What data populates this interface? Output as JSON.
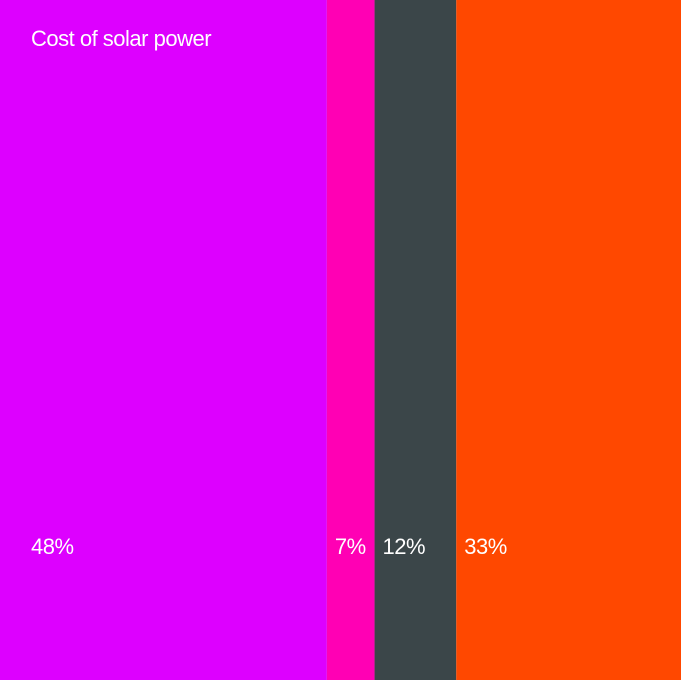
{
  "chart_data": {
    "type": "stacked-bar",
    "title": "Cost of solar power",
    "values": [
      48,
      7,
      12,
      33
    ],
    "value_labels": [
      "48%",
      "7%",
      "12%",
      "33%"
    ],
    "colors": [
      "#dd00ff",
      "#ff00b4",
      "#3b4649",
      "#ff4800"
    ]
  }
}
